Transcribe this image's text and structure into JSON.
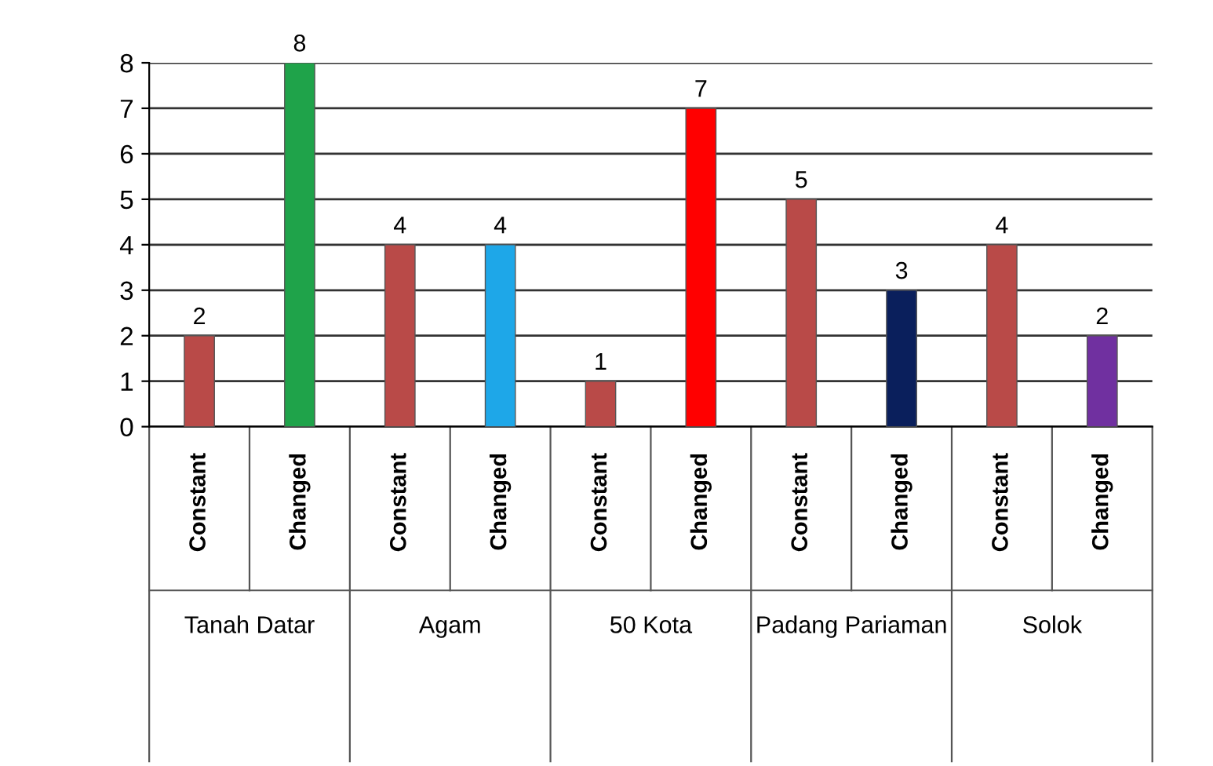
{
  "chart_data": {
    "type": "bar",
    "categories": [
      "Constant",
      "Changed",
      "Constant",
      "Changed",
      "Constant",
      "Changed",
      "Constant",
      "Changed",
      "Constant",
      "Changed"
    ],
    "values": [
      2,
      8,
      4,
      4,
      1,
      7,
      5,
      3,
      4,
      2
    ],
    "colors": [
      "#b94a48",
      "#1fa34a",
      "#b94a48",
      "#1ea7e8",
      "#b94a48",
      "#ff0000",
      "#b94a48",
      "#0a1f5c",
      "#b94a48",
      "#7030a0"
    ],
    "annotations": [
      "Tanah Datar",
      "Agam",
      "50 Kota",
      "Padang Pariaman",
      "Solok"
    ],
    "ylim": [
      0,
      8
    ],
    "yticks": [
      0,
      1,
      2,
      3,
      4,
      5,
      6,
      7,
      8
    ],
    "grid": "y",
    "data_labels": true
  }
}
